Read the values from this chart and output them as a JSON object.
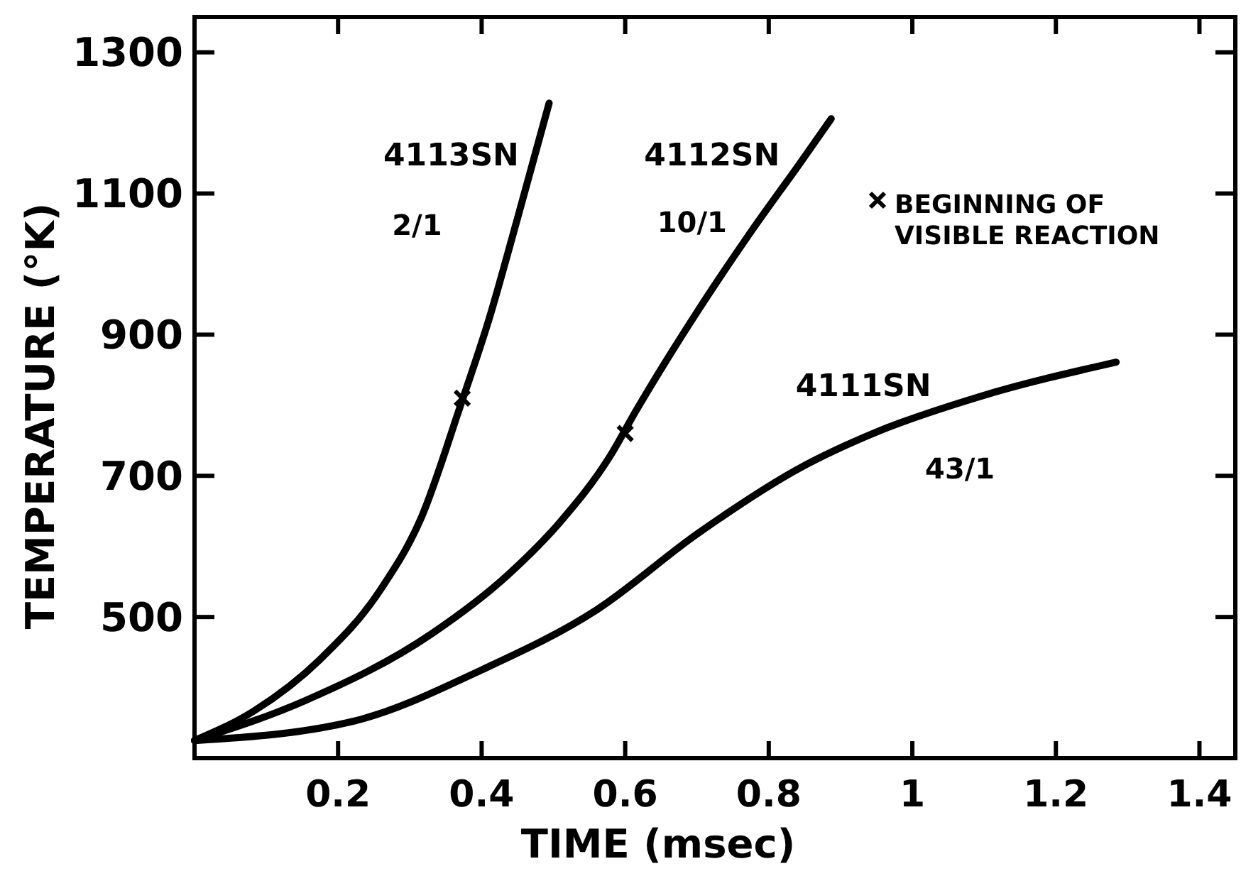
{
  "chart_data": {
    "type": "line",
    "xlabel": "TIME (msec)",
    "ylabel": "TEMPERATURE (°K)",
    "xlim": [
      0,
      1.45
    ],
    "xticks": [
      0.2,
      0.4,
      0.6,
      0.8,
      1.0,
      1.2,
      1.4
    ],
    "ylim": [
      300,
      1350
    ],
    "yticks": [
      500,
      700,
      900,
      1100,
      1300
    ],
    "grid": false,
    "legend": "top right",
    "line_style": "solid",
    "series": [
      {
        "name": "4113SN",
        "color": "#000000",
        "x": [
          0,
          0.083,
          0.175,
          0.26,
          0.316,
          0.37,
          0.41,
          0.45,
          0.494
        ],
        "values": [
          325,
          367,
          440,
          540,
          641,
          798,
          921,
          1065,
          1228
        ]
      },
      {
        "name": "4112SN",
        "color": "#000000",
        "x": [
          0,
          0.153,
          0.33,
          0.437,
          0.508,
          0.579,
          0.615,
          0.702,
          0.774,
          0.845,
          0.887
        ],
        "values": [
          325,
          381,
          476,
          560,
          633,
          728,
          792,
          935,
          1044,
          1145,
          1206
        ]
      },
      {
        "name": "4111SN",
        "color": "#000000",
        "x": [
          0,
          0.224,
          0.4,
          0.56,
          0.702,
          0.845,
          0.95,
          1.093,
          1.284
        ],
        "values": [
          325,
          353,
          425,
          510,
          619,
          712,
          762,
          812,
          861
        ]
      },
      {
        "name": "BEGINNING OF VISIBLE REACTION",
        "type": "scatter",
        "marker": "cross",
        "color": "#000000",
        "x": [
          0.373,
          0.6
        ],
        "values": [
          810,
          760
        ]
      }
    ],
    "annotations": [
      "2/1",
      "10/1",
      "43/1"
    ]
  }
}
